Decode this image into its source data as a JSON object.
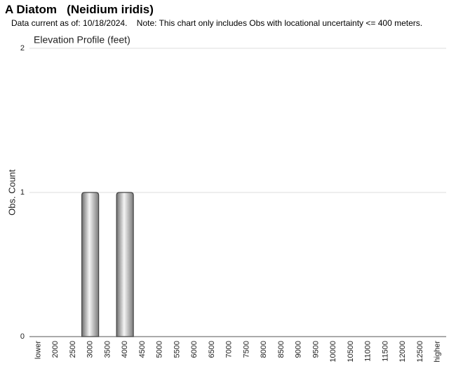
{
  "header": {
    "title": "A Diatom   (Neidium iridis)",
    "subtitle": "Data current as of: 10/18/2024.    Note: This chart only includes Obs with locational uncertainty <= 400 meters."
  },
  "chart_data": {
    "type": "bar",
    "title": "Elevation Profile (feet)",
    "y_label": "Obs. Count",
    "categories": [
      "lower",
      "2000",
      "2500",
      "3000",
      "3500",
      "4000",
      "4500",
      "5000",
      "5500",
      "6000",
      "6500",
      "7000",
      "7500",
      "8000",
      "8500",
      "9000",
      "9500",
      "10000",
      "10500",
      "11000",
      "11500",
      "12000",
      "12500",
      "higher"
    ],
    "values": [
      0,
      0,
      0,
      1,
      0,
      1,
      0,
      0,
      0,
      0,
      0,
      0,
      0,
      0,
      0,
      0,
      0,
      0,
      0,
      0,
      0,
      0,
      0,
      0
    ],
    "color": "#9a9a9a",
    "ylim": [
      0,
      2
    ],
    "yticks": [
      0,
      1,
      2
    ],
    "grid": true
  }
}
